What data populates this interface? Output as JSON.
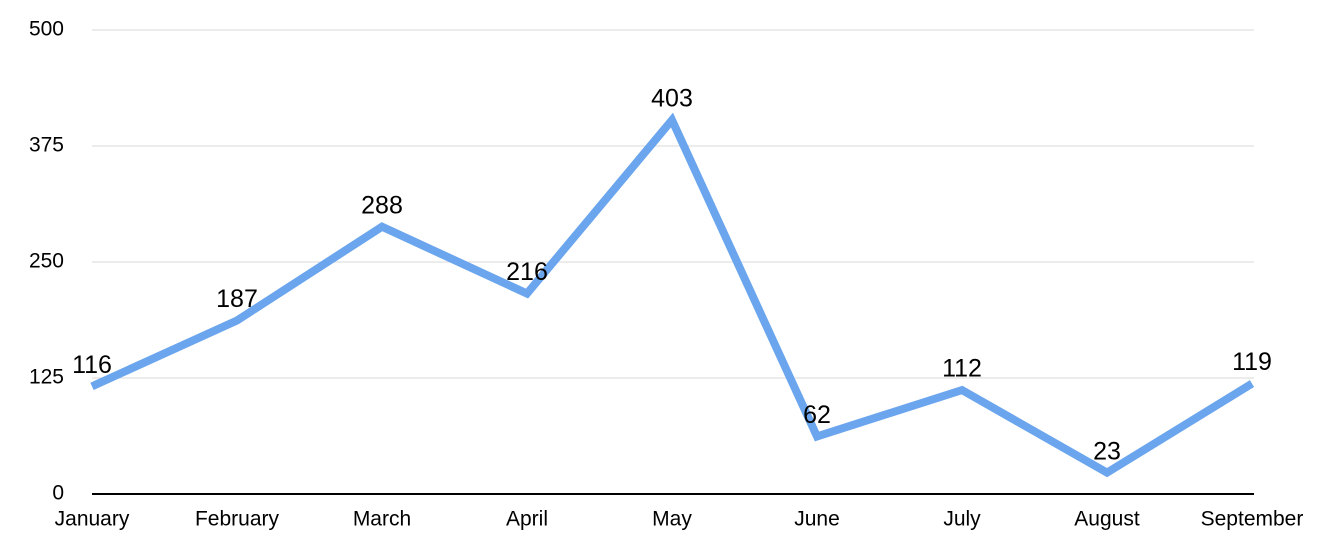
{
  "chart_data": {
    "type": "line",
    "categories": [
      "January",
      "February",
      "March",
      "April",
      "May",
      "June",
      "July",
      "August",
      "September"
    ],
    "series": [
      {
        "color": "#6aa5ee",
        "values": [
          116,
          187,
          288,
          216,
          403,
          62,
          112,
          23,
          119
        ]
      }
    ],
    "ylim": [
      0,
      500
    ],
    "yticks": [
      0,
      125,
      250,
      375,
      500
    ],
    "grid": true
  }
}
